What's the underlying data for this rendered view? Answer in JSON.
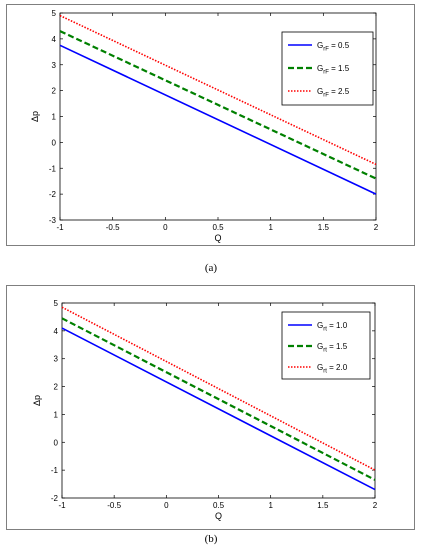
{
  "captions": [
    "(a)",
    "(b)"
  ],
  "chart_data": [
    {
      "type": "line",
      "xlabel": "Q",
      "ylabel": "Δp",
      "xlim": [
        -1,
        2
      ],
      "ylim": [
        -3,
        5
      ],
      "xticks": [
        -1,
        -0.5,
        0,
        0.5,
        1,
        1.5,
        2
      ],
      "yticks": [
        -3,
        -2,
        -1,
        0,
        1,
        2,
        3,
        4,
        5
      ],
      "xtick_labels": [
        "-1",
        "-0.5",
        "0",
        "0.5",
        "1",
        "1.5",
        "2"
      ],
      "ytick_labels": [
        "-3",
        "-2",
        "-1",
        "0",
        "1",
        "2",
        "3",
        "4",
        "5"
      ],
      "legend_position": "top-right",
      "series": [
        {
          "name": "G_rF = 0.5",
          "legend_sub": "rF",
          "legend_value": "0.5",
          "x": [
            -1,
            2
          ],
          "y": [
            3.75,
            -2.0
          ],
          "color": "#0000ff",
          "style": "solid"
        },
        {
          "name": "G_rF = 1.5",
          "legend_sub": "rF",
          "legend_value": "1.5",
          "x": [
            -1,
            2
          ],
          "y": [
            4.3,
            -1.4
          ],
          "color": "#008000",
          "style": "dashed"
        },
        {
          "name": "G_rF = 2.5",
          "legend_sub": "rF",
          "legend_value": "2.5",
          "x": [
            -1,
            2
          ],
          "y": [
            4.9,
            -0.85
          ],
          "color": "#ff0000",
          "style": "dotted"
        }
      ]
    },
    {
      "type": "line",
      "xlabel": "Q",
      "ylabel": "Δp",
      "xlim": [
        -1,
        2
      ],
      "ylim": [
        -2,
        5
      ],
      "xticks": [
        -1,
        -0.5,
        0,
        0.5,
        1,
        1.5,
        2
      ],
      "yticks": [
        -2,
        -1,
        0,
        1,
        2,
        3,
        4,
        5
      ],
      "xtick_labels": [
        "-1",
        "-0.5",
        "0",
        "0.5",
        "1",
        "1.5",
        "2"
      ],
      "ytick_labels": [
        "-2",
        "-1",
        "0",
        "1",
        "2",
        "3",
        "4",
        "5"
      ],
      "legend_position": "top-right",
      "series": [
        {
          "name": "G_rt = 1.0",
          "legend_sub": "rt",
          "legend_value": "1.0",
          "x": [
            -1,
            2
          ],
          "y": [
            4.1,
            -1.7
          ],
          "color": "#0000ff",
          "style": "solid"
        },
        {
          "name": "G_rt = 1.5",
          "legend_sub": "rt",
          "legend_value": "1.5",
          "x": [
            -1,
            2
          ],
          "y": [
            4.45,
            -1.35
          ],
          "color": "#008000",
          "style": "dashed"
        },
        {
          "name": "G_rt = 2.0",
          "legend_sub": "rt",
          "legend_value": "2.0",
          "x": [
            -1,
            2
          ],
          "y": [
            4.85,
            -1.0
          ],
          "color": "#ff0000",
          "style": "dotted"
        }
      ]
    }
  ]
}
